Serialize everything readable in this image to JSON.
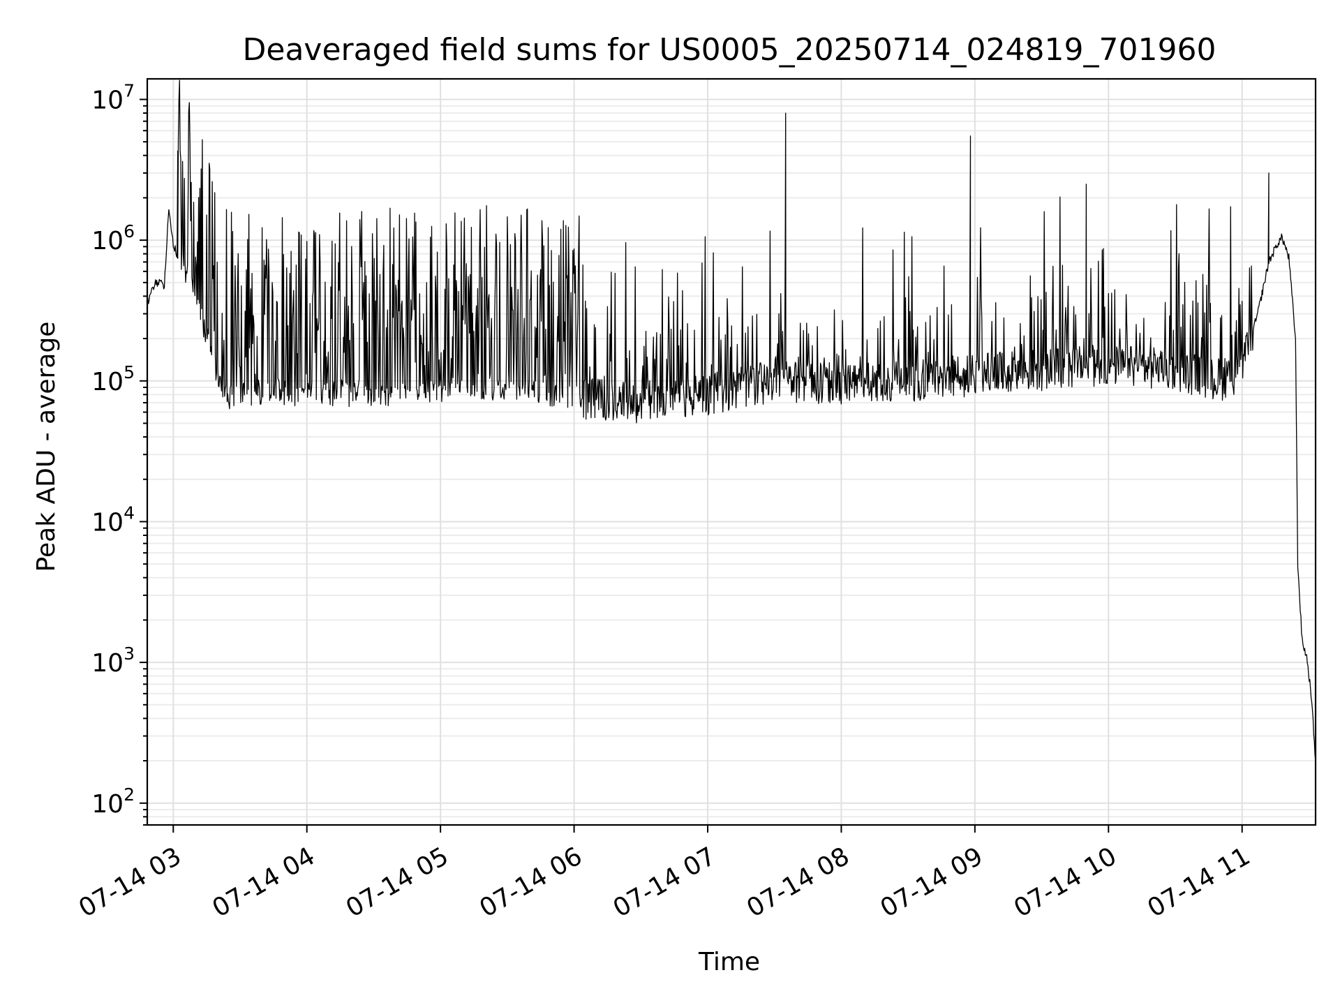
{
  "chart_data": {
    "type": "line",
    "title": "Deaveraged field sums for US0005_20250714_024819_701960",
    "xlabel": "Time",
    "ylabel": "Peak ADU - average",
    "yscale": "log",
    "ylim": [
      70,
      14000000
    ],
    "xlim": [
      "2025-07-14 02:48:19",
      "2025-07-14 11:33:00"
    ],
    "x_ticks": [
      "07-14 03",
      "07-14 04",
      "07-14 05",
      "07-14 06",
      "07-14 07",
      "07-14 08",
      "07-14 09",
      "07-14 10",
      "07-14 11"
    ],
    "x_tick_times": [
      "2025-07-14 03:00",
      "2025-07-14 04:00",
      "2025-07-14 05:00",
      "2025-07-14 06:00",
      "2025-07-14 07:00",
      "2025-07-14 08:00",
      "2025-07-14 09:00",
      "2025-07-14 10:00",
      "2025-07-14 11:00"
    ],
    "y_ticks": [
      {
        "base": "10",
        "exp": "2",
        "value": 100
      },
      {
        "base": "10",
        "exp": "3",
        "value": 1000
      },
      {
        "base": "10",
        "exp": "4",
        "value": 10000
      },
      {
        "base": "10",
        "exp": "5",
        "value": 100000
      },
      {
        "base": "10",
        "exp": "6",
        "value": 1000000
      },
      {
        "base": "10",
        "exp": "7",
        "value": 10000000
      }
    ],
    "grid": true,
    "series": [
      {
        "color": "#000000",
        "x": [
          "2025-07-14 02:48",
          "2025-07-14 02:52",
          "2025-07-14 02:56",
          "2025-07-14 02:58",
          "2025-07-14 03:00",
          "2025-07-14 03:02",
          "2025-07-14 03:05",
          "2025-07-14 03:10",
          "2025-07-14 03:15",
          "2025-07-14 03:20",
          "2025-07-14 03:25",
          "2025-07-14 03:30",
          "2025-07-14 03:45",
          "2025-07-14 04:00",
          "2025-07-14 04:30",
          "2025-07-14 05:00",
          "2025-07-14 05:30",
          "2025-07-14 06:00",
          "2025-07-14 06:30",
          "2025-07-14 07:00",
          "2025-07-14 07:30",
          "2025-07-14 08:00",
          "2025-07-14 08:30",
          "2025-07-14 09:00",
          "2025-07-14 09:30",
          "2025-07-14 10:00",
          "2025-07-14 10:30",
          "2025-07-14 10:50",
          "2025-07-14 11:00",
          "2025-07-14 11:07",
          "2025-07-14 11:12",
          "2025-07-14 11:16",
          "2025-07-14 11:18",
          "2025-07-14 11:21",
          "2025-07-14 11:24",
          "2025-07-14 11:25",
          "2025-07-14 11:27",
          "2025-07-14 11:29",
          "2025-07-14 11:31",
          "2025-07-14 11:33"
        ],
        "y": [
          350000,
          500000,
          480000,
          1700000,
          950000,
          750000,
          650000,
          400000,
          200000,
          110000,
          75000,
          80000,
          85000,
          80000,
          80000,
          85000,
          90000,
          75000,
          70000,
          80000,
          100000,
          95000,
          100000,
          110000,
          120000,
          130000,
          120000,
          100000,
          120000,
          300000,
          700000,
          950000,
          1050000,
          750000,
          200000,
          5000,
          1400,
          1100,
          600,
          200
        ]
      }
    ],
    "peaks": [
      {
        "x": "2025-07-14 03:02",
        "y": 4300000
      },
      {
        "x": "2025-07-14 07:35",
        "y": 8000000
      },
      {
        "x": "2025-07-14 08:58",
        "y": 5500000
      },
      {
        "x": "2025-07-14 09:50",
        "y": 2500000
      },
      {
        "x": "2025-07-14 11:12",
        "y": 3000000
      }
    ]
  }
}
